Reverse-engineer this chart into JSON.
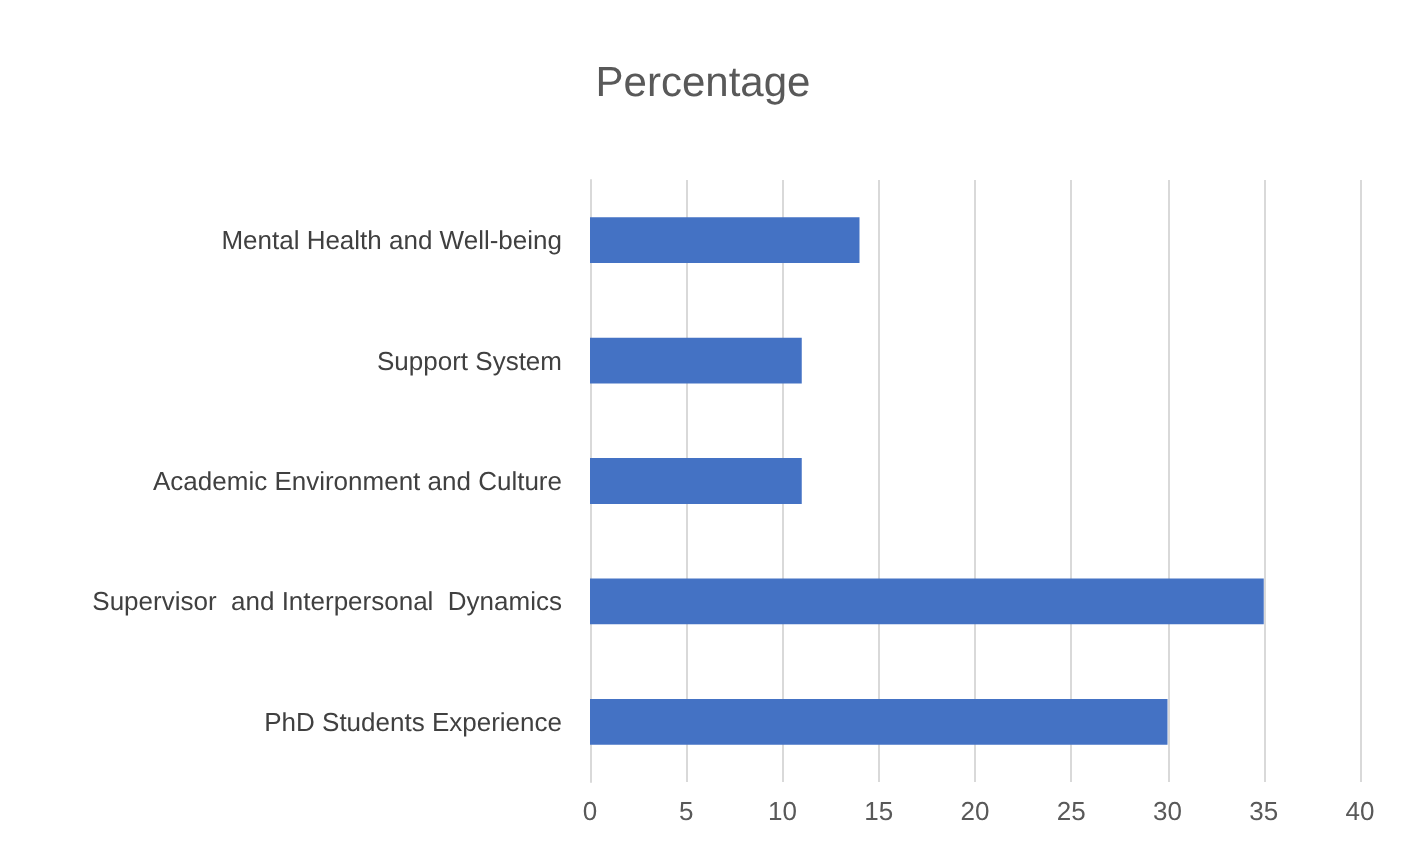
{
  "chart_data": {
    "type": "bar",
    "orientation": "horizontal",
    "title": "Percentage",
    "categories": [
      "Mental Health and Well-being",
      "Support System",
      "Academic Environment and Culture",
      "Supervisor  and Interpersonal  Dynamics",
      "PhD Students Experience"
    ],
    "values": [
      14,
      11,
      11,
      35,
      30
    ],
    "color": "#4472c4",
    "xlim": [
      0,
      40
    ],
    "xticks": [
      0,
      5,
      10,
      15,
      20,
      25,
      30,
      35,
      40
    ],
    "grid": "x"
  }
}
